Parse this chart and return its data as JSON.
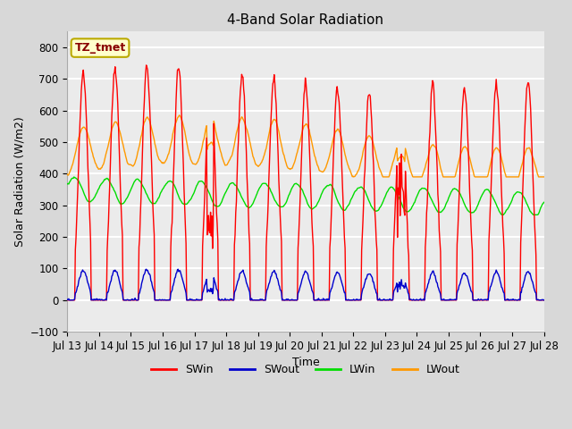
{
  "title": "4-Band Solar Radiation",
  "xlabel": "Time",
  "ylabel": "Solar Radiation (W/m2)",
  "annotation": "TZ_tmet",
  "ylim": [
    -100,
    850
  ],
  "x_tick_labels": [
    "Jul 13",
    "Jul 14",
    "Jul 15",
    "Jul 16",
    "Jul 17",
    "Jul 18",
    "Jul 19",
    "Jul 20",
    "Jul 21",
    "Jul 22",
    "Jul 23",
    "Jul 24",
    "Jul 25",
    "Jul 26",
    "Jul 27",
    "Jul 28"
  ],
  "colors": {
    "SWin": "#ff0000",
    "SWout": "#0000cc",
    "LWin": "#00dd00",
    "LWout": "#ff9900"
  },
  "line_width": 1.0,
  "bg_color": "#d8d8d8",
  "plot_bg": "#ebebeb",
  "grid_color": "#ffffff",
  "annotation_bg": "#ffffcc",
  "annotation_border": "#bbaa00",
  "annotation_text_color": "#880000",
  "title_fontsize": 11,
  "label_fontsize": 9,
  "tick_fontsize": 8.5,
  "legend_fontsize": 9,
  "yticks": [
    -100,
    0,
    100,
    200,
    300,
    400,
    500,
    600,
    700,
    800
  ]
}
